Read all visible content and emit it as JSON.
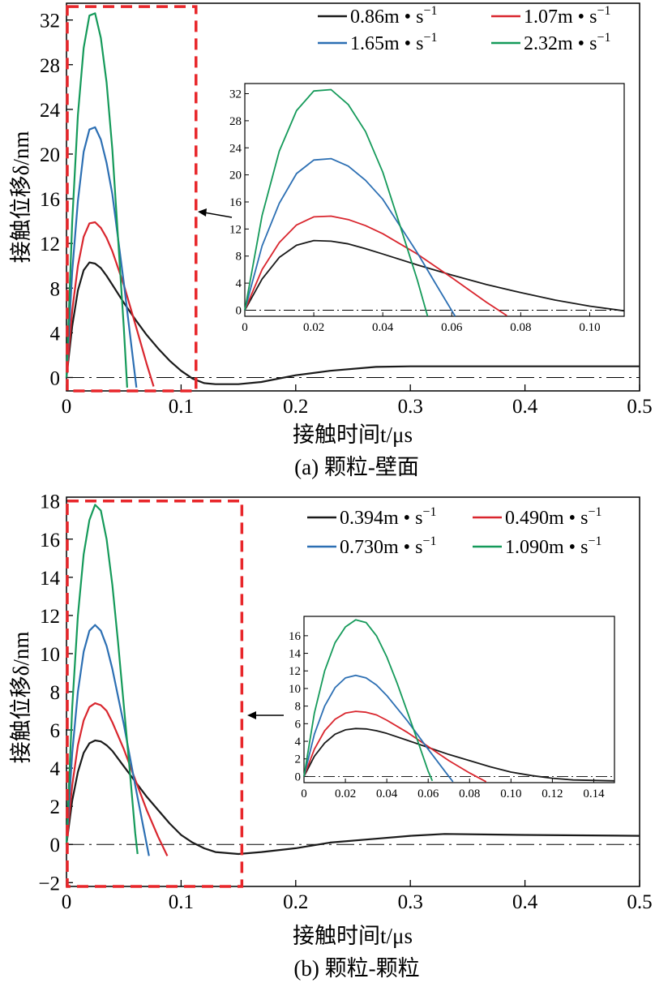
{
  "chart_data": [
    {
      "type": "line",
      "id": "a",
      "caption": "(a) 颗粒-壁面",
      "xlabel": "接触时间t/μs",
      "ylabel": "接触位移δ/nm",
      "xlim": [
        0,
        0.5
      ],
      "ylim": [
        -1.2,
        33.5
      ],
      "x_ticks": [
        "0",
        "0.1",
        "0.2",
        "0.3",
        "0.4",
        "0.5"
      ],
      "y_ticks": [
        "0",
        "4",
        "8",
        "12",
        "16",
        "20",
        "24",
        "28",
        "32"
      ],
      "series": [
        {
          "name": "0.86m • s−1",
          "unit_base": "0.86m • s",
          "unit_exp": "−1",
          "color": "#1a1a1a",
          "x": [
            0,
            0.005,
            0.01,
            0.015,
            0.02,
            0.025,
            0.03,
            0.035,
            0.04,
            0.05,
            0.06,
            0.07,
            0.08,
            0.09,
            0.1,
            0.11,
            0.12,
            0.13,
            0.15,
            0.17,
            0.2,
            0.23,
            0.27,
            0.3,
            0.4,
            0.5
          ],
          "y": [
            0,
            4.6,
            7.8,
            9.6,
            10.3,
            10.2,
            9.8,
            9.1,
            8.3,
            6.7,
            5.2,
            3.8,
            2.6,
            1.5,
            0.6,
            -0.1,
            -0.5,
            -0.6,
            -0.6,
            -0.4,
            0.2,
            0.6,
            0.95,
            1.0,
            1.0,
            1.0
          ]
        },
        {
          "name": "1.07m • s−1",
          "unit_base": "1.07m • s",
          "unit_exp": "−1",
          "color": "#d9262e",
          "x": [
            0,
            0.005,
            0.01,
            0.015,
            0.02,
            0.025,
            0.03,
            0.035,
            0.04,
            0.05,
            0.06,
            0.07,
            0.076
          ],
          "y": [
            0,
            6.0,
            10.0,
            12.6,
            13.8,
            13.9,
            13.4,
            12.5,
            11.3,
            8.3,
            4.8,
            1.2,
            -0.8
          ]
        },
        {
          "name": "1.65m • s−1",
          "unit_base": "1.65m • s",
          "unit_exp": "−1",
          "color": "#2c6fb3",
          "x": [
            0,
            0.005,
            0.01,
            0.015,
            0.02,
            0.025,
            0.03,
            0.035,
            0.04,
            0.05,
            0.055,
            0.061
          ],
          "y": [
            0,
            9.5,
            15.8,
            20.2,
            22.2,
            22.4,
            21.3,
            19.2,
            16.4,
            8.5,
            4.2,
            -0.9
          ]
        },
        {
          "name": "2.32m • s−1",
          "unit_base": "2.32m • s",
          "unit_exp": "−1",
          "color": "#159a5a",
          "x": [
            0,
            0.005,
            0.01,
            0.015,
            0.02,
            0.025,
            0.03,
            0.035,
            0.04,
            0.045,
            0.05,
            0.053
          ],
          "y": [
            0,
            14.0,
            23.5,
            29.5,
            32.4,
            32.6,
            30.4,
            26.4,
            20.4,
            12.5,
            4.5,
            -0.9
          ]
        }
      ],
      "baseline_style": "dash-dot",
      "highlight_box": {
        "x_range": [
          0,
          0.113
        ],
        "y_range": [
          -1.2,
          33.2
        ],
        "color": "#e8262a",
        "style": "dashed"
      },
      "inset": {
        "xlim": [
          0,
          0.11
        ],
        "ylim": [
          -0.9,
          33.5
        ],
        "x_ticks": [
          "0",
          "0.02",
          "0.04",
          "0.06",
          "0.08",
          "0.10"
        ],
        "y_ticks": [
          "0",
          "4",
          "8",
          "12",
          "16",
          "20",
          "24",
          "28",
          "32"
        ]
      },
      "legend_position": "top-right"
    },
    {
      "type": "line",
      "id": "b",
      "caption": "(b) 颗粒-颗粒",
      "xlabel": "接触时间t/μs",
      "ylabel": "接触位移δ/nm",
      "xlim": [
        0,
        0.5
      ],
      "ylim": [
        -2.2,
        18.2
      ],
      "x_ticks": [
        "0",
        "0.1",
        "0.2",
        "0.3",
        "0.4",
        "0.5"
      ],
      "y_ticks": [
        "−2",
        "0",
        "2",
        "4",
        "6",
        "8",
        "10",
        "12",
        "14",
        "16",
        "18"
      ],
      "series": [
        {
          "name": "0.394m • s−1",
          "unit_base": "0.394m • s",
          "unit_exp": "−1",
          "color": "#1a1a1a",
          "x": [
            0,
            0.005,
            0.01,
            0.015,
            0.02,
            0.025,
            0.03,
            0.035,
            0.04,
            0.05,
            0.06,
            0.07,
            0.08,
            0.09,
            0.1,
            0.11,
            0.12,
            0.13,
            0.15,
            0.17,
            0.2,
            0.23,
            0.27,
            0.3,
            0.33,
            0.4,
            0.5
          ],
          "y": [
            0,
            2.3,
            3.8,
            4.8,
            5.3,
            5.45,
            5.4,
            5.2,
            4.9,
            4.1,
            3.3,
            2.5,
            1.8,
            1.1,
            0.5,
            0.1,
            -0.2,
            -0.4,
            -0.5,
            -0.4,
            -0.2,
            0.1,
            0.3,
            0.45,
            0.55,
            0.5,
            0.45
          ]
        },
        {
          "name": "0.490m • s−1",
          "unit_base": "0.490m • s",
          "unit_exp": "−1",
          "color": "#d9262e",
          "x": [
            0,
            0.005,
            0.01,
            0.015,
            0.02,
            0.025,
            0.03,
            0.035,
            0.04,
            0.05,
            0.06,
            0.07,
            0.08,
            0.088
          ],
          "y": [
            0,
            3.1,
            5.2,
            6.5,
            7.2,
            7.4,
            7.3,
            7.0,
            6.4,
            5.0,
            3.4,
            1.8,
            0.4,
            -0.6
          ]
        },
        {
          "name": "0.730m • s−1",
          "unit_base": "0.730m • s",
          "unit_exp": "−1",
          "color": "#2c6fb3",
          "x": [
            0,
            0.005,
            0.01,
            0.015,
            0.02,
            0.025,
            0.03,
            0.035,
            0.04,
            0.05,
            0.06,
            0.07,
            0.072
          ],
          "y": [
            0,
            4.8,
            8.0,
            10.1,
            11.2,
            11.5,
            11.2,
            10.4,
            9.2,
            6.3,
            3.1,
            0.0,
            -0.6
          ]
        },
        {
          "name": "1.090m • s−1",
          "unit_base": "1.090m • s",
          "unit_exp": "−1",
          "color": "#159a5a",
          "x": [
            0,
            0.005,
            0.01,
            0.015,
            0.02,
            0.025,
            0.03,
            0.035,
            0.04,
            0.045,
            0.05,
            0.055,
            0.06,
            0.062
          ],
          "y": [
            0,
            7.2,
            12.0,
            15.2,
            17.0,
            17.8,
            17.5,
            16.0,
            13.6,
            10.6,
            7.3,
            4.0,
            0.6,
            -0.5
          ]
        }
      ],
      "baseline_style": "dash-dot",
      "highlight_box": {
        "x_range": [
          0,
          0.153
        ],
        "y_range": [
          -2.2,
          18.0
        ],
        "color": "#e8262a",
        "style": "dashed"
      },
      "inset": {
        "xlim": [
          0,
          0.15
        ],
        "ylim": [
          -0.7,
          18.2
        ],
        "x_ticks": [
          "0",
          "0.02",
          "0.04",
          "0.06",
          "0.08",
          "0.10",
          "0.12",
          "0.14"
        ],
        "y_ticks": [
          "0",
          "2",
          "4",
          "6",
          "8",
          "10",
          "12",
          "14",
          "16"
        ]
      },
      "legend_position": "top-right"
    }
  ]
}
